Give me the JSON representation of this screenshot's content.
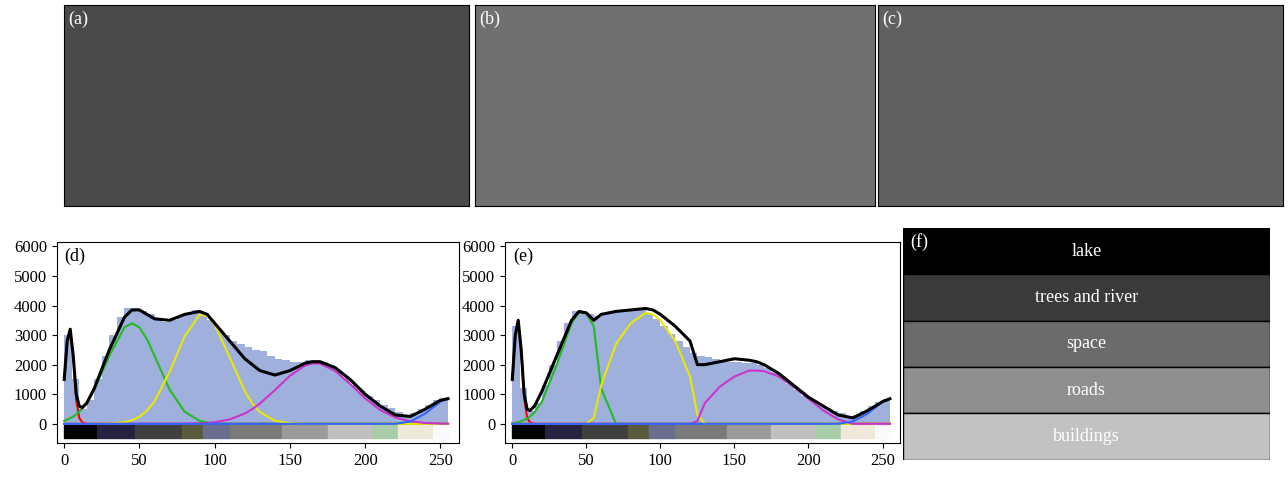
{
  "images": [
    {
      "label": "(a)"
    },
    {
      "label": "(b)"
    },
    {
      "label": "(c)"
    }
  ],
  "chart_data": [
    {
      "type": "histogram",
      "label": "(d)",
      "color": "#9fb0dc",
      "bins": [
        0,
        5,
        10,
        15,
        20,
        25,
        30,
        35,
        40,
        45,
        50,
        55,
        60,
        65,
        70,
        75,
        80,
        85,
        90,
        95,
        100,
        105,
        110,
        115,
        120,
        125,
        130,
        135,
        140,
        145,
        150,
        155,
        160,
        165,
        170,
        175,
        180,
        185,
        190,
        195,
        200,
        205,
        210,
        215,
        220,
        225,
        230,
        235,
        240,
        245,
        250,
        255
      ],
      "counts": [
        3000,
        1500,
        500,
        800,
        1500,
        2300,
        3000,
        3600,
        3900,
        3900,
        3800,
        3700,
        3550,
        3450,
        3500,
        3650,
        3750,
        3850,
        3750,
        3500,
        3200,
        3000,
        2800,
        2700,
        2600,
        2500,
        2450,
        2300,
        2200,
        2150,
        2100,
        2100,
        2150,
        2150,
        2100,
        2000,
        1800,
        1550,
        1300,
        1100,
        950,
        800,
        650,
        550,
        400,
        300,
        350,
        500,
        650,
        800,
        850
      ],
      "x": [
        0,
        2,
        4,
        6,
        8,
        10,
        12,
        15,
        20,
        30,
        40,
        45,
        50,
        55,
        60,
        70,
        80,
        90,
        95,
        100,
        110,
        120,
        125,
        130,
        140,
        150,
        160,
        165,
        170,
        180,
        190,
        200,
        210,
        220,
        230,
        240,
        250,
        255
      ],
      "series": [
        {
          "color": "#ff0000",
          "values": [
            1500,
            2800,
            3200,
            2300,
            800,
            200,
            50,
            0,
            0,
            0,
            0,
            0,
            0,
            0,
            0,
            0,
            0,
            0,
            0,
            0,
            0,
            0,
            0,
            0,
            0,
            0,
            0,
            0,
            0,
            0,
            0,
            0,
            0,
            0,
            0,
            0,
            0,
            0
          ]
        },
        {
          "color": "#22bb22",
          "values": [
            100,
            140,
            190,
            245,
            320,
            410,
            520,
            715,
            1160,
            2300,
            3260,
            3400,
            3260,
            2860,
            2300,
            1160,
            410,
            100,
            50,
            15,
            0,
            0,
            0,
            0,
            0,
            0,
            0,
            0,
            0,
            0,
            0,
            0,
            0,
            0,
            0,
            0,
            0,
            0
          ]
        },
        {
          "color": "#e8e800",
          "values": [
            0,
            0,
            0,
            0,
            0,
            0,
            0,
            0,
            0,
            10,
            57,
            120,
            245,
            445,
            760,
            1750,
            2960,
            3690,
            3650,
            3350,
            2245,
            1100,
            690,
            400,
            105,
            20,
            0,
            0,
            0,
            0,
            0,
            0,
            0,
            0,
            0,
            0,
            0,
            0
          ]
        },
        {
          "color": "#cc33cc",
          "values": [
            0,
            0,
            0,
            0,
            0,
            0,
            0,
            0,
            0,
            0,
            0,
            0,
            0,
            0,
            0,
            0,
            5,
            18,
            30,
            56,
            150,
            350,
            500,
            685,
            1140,
            1625,
            1970,
            2045,
            2035,
            1790,
            1345,
            860,
            465,
            215,
            85,
            29,
            8,
            4
          ]
        },
        {
          "color": "#3366ff",
          "values": [
            0,
            0,
            0,
            0,
            0,
            0,
            0,
            0,
            0,
            0,
            0,
            0,
            0,
            0,
            0,
            0,
            0,
            0,
            0,
            0,
            0,
            0,
            0,
            0,
            0,
            0,
            0,
            0,
            0,
            0,
            0,
            0,
            0,
            0,
            80,
            350,
            750,
            850
          ]
        },
        {
          "color": "#000000",
          "values": [
            1500,
            2800,
            3200,
            2300,
            1000,
            600,
            550,
            700,
            1200,
            2500,
            3600,
            3850,
            3850,
            3700,
            3550,
            3500,
            3700,
            3800,
            3700,
            3400,
            2800,
            2200,
            2000,
            1800,
            1650,
            1800,
            2050,
            2100,
            2100,
            1900,
            1500,
            1000,
            600,
            300,
            250,
            500,
            800,
            850
          ]
        }
      ],
      "strip": {
        "edges": [
          0,
          22,
          47,
          78,
          92,
          110,
          145,
          175,
          205,
          222,
          245,
          255
        ],
        "colors": [
          "#000000",
          "#26213f",
          "#3f3f3f",
          "#5a5a3c",
          "#6a6e8e",
          "#7a7a7a",
          "#9a9a9a",
          "#c0c0c0",
          "#a8cca8",
          "#f0e8d8",
          "#fafafa"
        ]
      },
      "xlim": [
        -5,
        262
      ],
      "ylim": [
        -650,
        6150
      ],
      "xticks": [
        0,
        50,
        100,
        150,
        200,
        250
      ],
      "yticks": [
        0,
        1000,
        2000,
        3000,
        4000,
        5000,
        6000
      ]
    },
    {
      "type": "histogram",
      "label": "(e)",
      "color": "#9fb0dc",
      "bins": [
        0,
        5,
        10,
        15,
        20,
        25,
        30,
        35,
        40,
        45,
        50,
        55,
        60,
        65,
        70,
        75,
        80,
        85,
        90,
        95,
        100,
        105,
        110,
        115,
        120,
        125,
        130,
        135,
        140,
        145,
        150,
        155,
        160,
        165,
        170,
        175,
        180,
        185,
        190,
        195,
        200,
        205,
        210,
        215,
        220,
        225,
        230,
        235,
        240,
        245,
        250,
        255
      ],
      "counts": [
        3300,
        1200,
        450,
        700,
        1300,
        2000,
        2800,
        3400,
        3800,
        3800,
        3700,
        3650,
        3700,
        3750,
        3800,
        3800,
        3850,
        3850,
        3700,
        3550,
        3300,
        3050,
        2800,
        2600,
        2400,
        2300,
        2250,
        2200,
        2150,
        2100,
        2100,
        2050,
        2050,
        2000,
        1900,
        1750,
        1550,
        1350,
        1150,
        950,
        800,
        650,
        550,
        450,
        350,
        250,
        300,
        450,
        600,
        750,
        850
      ],
      "x": [
        0,
        2,
        4,
        6,
        8,
        10,
        12,
        15,
        20,
        30,
        40,
        45,
        50,
        55,
        60,
        70,
        80,
        90,
        95,
        100,
        110,
        120,
        125,
        130,
        140,
        150,
        160,
        165,
        170,
        180,
        190,
        200,
        210,
        220,
        230,
        240,
        250,
        255
      ],
      "series": [
        {
          "color": "#ff0000",
          "values": [
            1500,
            3000,
            3500,
            2500,
            900,
            200,
            50,
            0,
            0,
            0,
            0,
            0,
            0,
            0,
            0,
            0,
            0,
            0,
            0,
            0,
            0,
            0,
            0,
            0,
            0,
            0,
            0,
            0,
            0,
            0,
            0,
            0,
            0,
            0,
            0,
            0,
            0,
            0
          ]
        },
        {
          "color": "#22bb22",
          "values": [
            28,
            35,
            60,
            90,
            130,
            180,
            250,
            390,
            750,
            2000,
            3400,
            3770,
            3730,
            3300,
            1200,
            0,
            0,
            0,
            0,
            0,
            0,
            0,
            0,
            0,
            0,
            0,
            0,
            0,
            0,
            0,
            0,
            0,
            0,
            0,
            0,
            0,
            0,
            0
          ]
        },
        {
          "color": "#e8e800",
          "values": [
            0,
            0,
            0,
            0,
            0,
            0,
            0,
            0,
            0,
            0,
            0,
            0,
            0,
            200,
            1300,
            2700,
            3400,
            3750,
            3700,
            3500,
            2800,
            1600,
            300,
            0,
            0,
            0,
            0,
            0,
            0,
            0,
            0,
            0,
            0,
            0,
            0,
            0,
            0,
            0
          ]
        },
        {
          "color": "#cc33cc",
          "values": [
            0,
            0,
            0,
            0,
            0,
            0,
            0,
            0,
            0,
            0,
            0,
            0,
            0,
            0,
            0,
            0,
            0,
            0,
            0,
            0,
            0,
            0,
            100,
            700,
            1250,
            1600,
            1800,
            1800,
            1780,
            1600,
            1250,
            850,
            450,
            150,
            0,
            0,
            0,
            0
          ]
        },
        {
          "color": "#3366ff",
          "values": [
            0,
            0,
            0,
            0,
            0,
            0,
            0,
            0,
            0,
            0,
            0,
            0,
            0,
            0,
            0,
            0,
            0,
            0,
            0,
            0,
            0,
            0,
            0,
            0,
            0,
            0,
            0,
            0,
            0,
            0,
            0,
            0,
            0,
            0,
            80,
            350,
            750,
            850
          ]
        },
        {
          "color": "#000000",
          "values": [
            1500,
            3000,
            3500,
            2500,
            1000,
            500,
            450,
            600,
            1100,
            2300,
            3500,
            3800,
            3750,
            3500,
            3700,
            3800,
            3850,
            3900,
            3850,
            3700,
            3300,
            2800,
            2000,
            2000,
            2100,
            2200,
            2150,
            2100,
            2000,
            1700,
            1300,
            900,
            600,
            300,
            200,
            450,
            750,
            850
          ]
        }
      ],
      "strip": {
        "edges": [
          0,
          22,
          47,
          78,
          92,
          110,
          145,
          175,
          205,
          222,
          245,
          255
        ],
        "colors": [
          "#000000",
          "#26213f",
          "#3f3f3f",
          "#5a5a3c",
          "#6a6e8e",
          "#7a7a7a",
          "#9a9a9a",
          "#c0c0c0",
          "#a8cca8",
          "#f0e8d8",
          "#fafafa"
        ]
      },
      "xlim": [
        -5,
        262
      ],
      "ylim": [
        -650,
        6150
      ],
      "xticks": [
        0,
        50,
        100,
        150,
        200,
        250
      ],
      "yticks": [
        0,
        1000,
        2000,
        3000,
        4000,
        5000,
        6000
      ]
    }
  ],
  "legend_panel": {
    "label": "(f)",
    "entries": [
      {
        "text": "lake",
        "color": "#000000"
      },
      {
        "text": "trees and river",
        "color": "#3a3a3a"
      },
      {
        "text": "space",
        "color": "#6b6b6b"
      },
      {
        "text": "roads",
        "color": "#8f8f8f"
      },
      {
        "text": "buildings",
        "color": "#c2c2c2"
      }
    ]
  }
}
